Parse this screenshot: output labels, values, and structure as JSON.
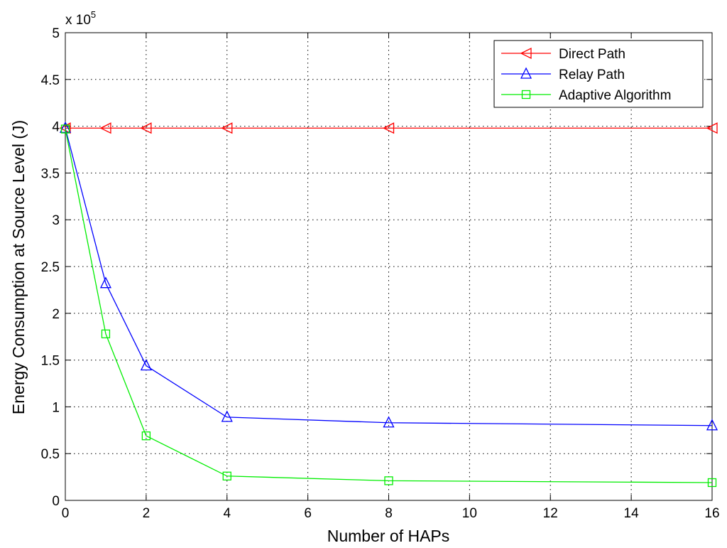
{
  "chart_data": {
    "type": "line",
    "title": "",
    "xlabel": "Number of HAPs",
    "ylabel": "Energy Consumption at Source Level (J)",
    "y_multiplier_label": "x 10",
    "y_multiplier_exponent": "5",
    "xlim": [
      0,
      16
    ],
    "ylim": [
      0,
      5
    ],
    "xticks": [
      0,
      2,
      4,
      6,
      8,
      10,
      12,
      14,
      16
    ],
    "yticks": [
      0,
      0.5,
      1,
      1.5,
      2,
      2.5,
      3,
      3.5,
      4,
      4.5,
      5
    ],
    "xtick_labels": [
      "0",
      "2",
      "4",
      "6",
      "8",
      "10",
      "12",
      "14",
      "16"
    ],
    "ytick_labels": [
      "0",
      "0.5",
      "1",
      "1.5",
      "2",
      "2.5",
      "3",
      "3.5",
      "4",
      "4.5",
      "5"
    ],
    "grid": true,
    "legend_position": "top-right",
    "x": [
      0,
      1,
      2,
      4,
      8,
      16
    ],
    "series": [
      {
        "name": "Direct Path",
        "color": "#ff0000",
        "marker": "triangle-left",
        "values": [
          3.98,
          3.98,
          3.98,
          3.98,
          3.98,
          3.98
        ]
      },
      {
        "name": "Relay Path",
        "color": "#0000ff",
        "marker": "triangle-up",
        "values": [
          3.98,
          2.32,
          1.44,
          0.89,
          0.83,
          0.8
        ]
      },
      {
        "name": "Adaptive Algorithm",
        "color": "#00ee00",
        "marker": "square",
        "values": [
          3.97,
          1.78,
          0.69,
          0.26,
          0.21,
          0.19
        ]
      }
    ]
  }
}
